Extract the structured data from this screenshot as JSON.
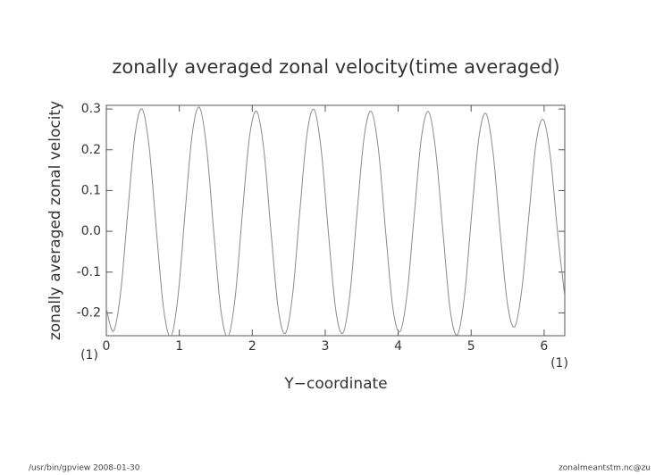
{
  "chart_data": {
    "type": "line",
    "title": "zonally averaged zonal velocity(time averaged)",
    "x_label": "Y−coordinate",
    "y_label": "zonally averaged zonal velocity",
    "annotations": [
      "(1)",
      "(1)"
    ],
    "footer_left": "/usr/bin/gpview   2008-01-30",
    "footer_right": "zonalmeantstm.nc@zu",
    "x": [
      0,
      0.098,
      0.196,
      0.295,
      0.393,
      0.491,
      0.589,
      0.687,
      0.785,
      0.884,
      0.982,
      1.08,
      1.178,
      1.276,
      1.374,
      1.473,
      1.571,
      1.669,
      1.767,
      1.865,
      1.963,
      2.062,
      2.16,
      2.258,
      2.356,
      2.454,
      2.553,
      2.651,
      2.749,
      2.847,
      2.945,
      3.043,
      3.142,
      3.24,
      3.338,
      3.436,
      3.534,
      3.632,
      3.731,
      3.829,
      3.927,
      4.025,
      4.123,
      4.222,
      4.32,
      4.418,
      4.516,
      4.614,
      4.712,
      4.811,
      4.909,
      5.007,
      5.105,
      5.203,
      5.301,
      5.4,
      5.498,
      5.596,
      5.694,
      5.792,
      5.89,
      5.989,
      6.087,
      6.185,
      6.283
    ],
    "series": [
      {
        "color": "#8a8a8a",
        "values": [
          -0.19,
          -0.245,
          -0.15,
          0.05,
          0.237,
          0.3,
          0.203,
          0.0,
          -0.19,
          -0.258,
          -0.16,
          0.048,
          0.24,
          0.304,
          0.205,
          -0.003,
          -0.195,
          -0.258,
          -0.16,
          0.045,
          0.233,
          0.294,
          0.198,
          -0.004,
          -0.19,
          -0.25,
          -0.155,
          0.047,
          0.237,
          0.299,
          0.2,
          -0.002,
          -0.19,
          -0.25,
          -0.155,
          0.045,
          0.232,
          0.294,
          0.198,
          -0.003,
          -0.188,
          -0.246,
          -0.152,
          0.044,
          0.232,
          0.293,
          0.195,
          -0.003,
          -0.192,
          -0.254,
          -0.158,
          0.042,
          0.228,
          0.289,
          0.192,
          -0.005,
          -0.178,
          -0.234,
          -0.143,
          0.04,
          0.217,
          0.274,
          0.182,
          -0.004,
          -0.16
        ]
      }
    ],
    "xlim": [
      0,
      6.283
    ],
    "ylim": [
      -0.256,
      0.309
    ],
    "xticks": [
      0,
      1,
      2,
      3,
      4,
      5,
      6
    ],
    "yticks": [
      -0.2,
      -0.1,
      {
        "value": 0,
        "label": "0.0"
      },
      0.1,
      0.2,
      0.3
    ]
  }
}
